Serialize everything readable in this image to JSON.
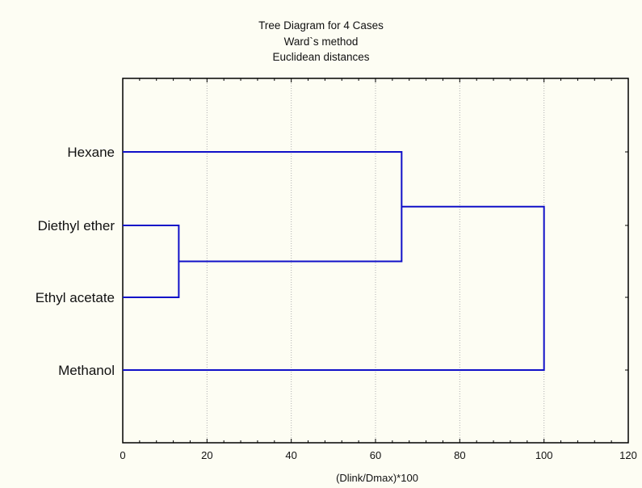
{
  "chart_data": {
    "type": "dendrogram",
    "title": [
      "Tree Diagram for 4 Cases",
      "Ward`s method",
      "Euclidean distances"
    ],
    "xlabel": "(Dlink/Dmax)*100",
    "xlim": [
      0,
      120
    ],
    "xticks": [
      0,
      20,
      40,
      60,
      80,
      100,
      120
    ],
    "grid": "vertical dotted",
    "leaves": [
      "Hexane",
      "Diethyl ether",
      "Ethyl acetate",
      "Methanol"
    ],
    "leaf_labels": [
      "Hexane",
      "Diethyl ether",
      "Ethyl acetate",
      "Methanol"
    ],
    "merges": [
      {
        "left": "Diethyl ether",
        "right": "Ethyl acetate",
        "height": 13.3
      },
      {
        "left": "Hexane",
        "right": "Diethyl ether + Ethyl acetate",
        "height": 66.2
      },
      {
        "left": "Hexane + Diethyl ether + Ethyl acetate",
        "right": "Methanol",
        "height": 100
      }
    ],
    "line_color": "#1010c8"
  }
}
